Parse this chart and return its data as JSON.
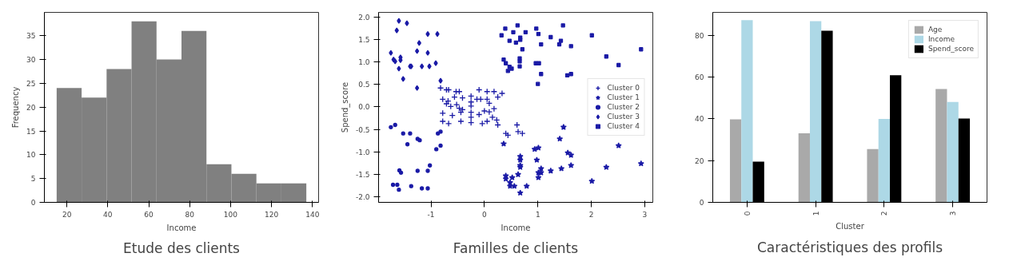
{
  "chart_data": [
    {
      "type": "histogram",
      "title": "Etude des clients",
      "xlabel": "Income",
      "ylabel": "Frequency",
      "bins": [
        15,
        27.2,
        39.4,
        51.6,
        63.8,
        76,
        88.2,
        100.4,
        112.6,
        124.8,
        137
      ],
      "values": [
        24,
        22,
        28,
        38,
        30,
        36,
        8,
        6,
        4,
        4
      ],
      "color": "#808080",
      "xlim": [
        9,
        143
      ],
      "xticks": [
        20,
        40,
        60,
        80,
        100,
        120,
        140
      ],
      "ylim": [
        0,
        39.9
      ],
      "yticks": [
        0,
        5,
        10,
        15,
        20,
        25,
        30,
        35
      ],
      "grid": false
    },
    {
      "type": "scatter",
      "title": "Familles de clients",
      "xlabel": "Income",
      "ylabel": "Spend_score",
      "xlim": [
        -1.98,
        3.15
      ],
      "xticks": [
        -1,
        0,
        1,
        2,
        3
      ],
      "ylim": [
        -2.12,
        2.1
      ],
      "yticks": [
        {
          "value": -2,
          "label": "-2.0"
        },
        -1.5,
        {
          "value": -1,
          "label": "-1.0"
        },
        -0.5,
        {
          "value": 0,
          "label": "0.0"
        },
        0.5,
        {
          "value": 1,
          "label": "1.0"
        },
        1.5,
        {
          "value": 2,
          "label": "2.0"
        }
      ],
      "grid": false,
      "legend": "right",
      "series": [
        {
          "name": "Cluster 0",
          "color": "#1a1aa6",
          "marker": "cross",
          "x": [
            -0.82,
            -0.71,
            -0.67,
            -0.78,
            -0.68,
            -0.71,
            -0.78,
            -0.78,
            -0.67,
            -0.63,
            -0.6,
            -0.56,
            -0.53,
            -0.47,
            -0.52,
            -0.47,
            -0.44,
            -0.41,
            -0.44,
            -0.41,
            -0.25,
            -0.25,
            -0.25,
            -0.25,
            -0.25,
            -0.25,
            -0.14,
            -0.1,
            -0.07,
            -0.1,
            -0.04,
            0.0,
            0.05,
            0.05,
            0.05,
            0.09,
            0.09,
            0.15,
            0.18,
            0.18,
            0.23,
            0.25,
            0.25,
            0.33,
            0.4,
            0.44,
            0.61,
            0.63,
            0.71
          ],
          "values": [
            0.42,
            0.38,
            0.38,
            0.17,
            0.13,
            0.07,
            -0.14,
            -0.32,
            -0.37,
            0.01,
            -0.19,
            0.22,
            0.34,
            0.34,
            0.05,
            -0.03,
            -0.12,
            0.2,
            -0.32,
            -0.06,
            0.24,
            0.11,
            0.02,
            -0.12,
            -0.23,
            -0.35,
            0.17,
            0.38,
            0.17,
            -0.17,
            -0.37,
            -0.09,
            0.34,
            0.17,
            -0.32,
            0.08,
            -0.11,
            -0.23,
            -0.04,
            0.34,
            -0.29,
            0.22,
            -0.4,
            0.3,
            -0.59,
            -0.63,
            -0.4,
            -0.55,
            -0.59
          ]
        },
        {
          "name": "Cluster 1",
          "color": "#1a1aa6",
          "marker": "star",
          "x": [
            0.36,
            0.4,
            0.4,
            0.48,
            0.48,
            0.52,
            0.56,
            0.63,
            0.67,
            0.67,
            0.67,
            0.67,
            0.67,
            0.79,
            0.94,
            1.01,
            0.98,
            1.01,
            1.01,
            1.06,
            1.06,
            1.24,
            1.41,
            1.48,
            1.44,
            1.56,
            1.62,
            1.62,
            2.01,
            2.28,
            2.51,
            2.93
          ],
          "values": [
            -0.82,
            -1.53,
            -1.6,
            -1.68,
            -1.76,
            -1.57,
            -1.76,
            -1.5,
            -1.1,
            -1.18,
            -1.3,
            -1.34,
            -1.91,
            -1.76,
            -0.94,
            -0.91,
            -1.18,
            -1.46,
            -1.57,
            -1.46,
            -1.37,
            -1.42,
            -0.71,
            -0.45,
            -1.37,
            -1.02,
            -1.07,
            -1.3,
            -1.65,
            -1.34,
            -0.86,
            -1.26
          ]
        },
        {
          "name": "Cluster 2",
          "color": "#1a1aa6",
          "marker": "circle",
          "x": [
            -1.75,
            -1.67,
            -1.52,
            -1.39,
            -1.44,
            -1.25,
            -1.21,
            -1.59,
            -1.56,
            -1.71,
            -1.63,
            -1.6,
            -1.37,
            -1.25,
            -1.17,
            -1.06,
            -1.06,
            -1.02,
            -0.9,
            -0.87,
            -0.82,
            -0.82
          ],
          "values": [
            -0.45,
            -0.4,
            -0.59,
            -0.59,
            -0.83,
            -0.71,
            -0.74,
            -1.41,
            -1.46,
            -1.73,
            -1.73,
            -1.84,
            -1.76,
            -1.42,
            -1.81,
            -1.81,
            -1.42,
            -1.3,
            -0.94,
            -0.59,
            -0.55,
            -0.86
          ]
        },
        {
          "name": "Cluster 3",
          "color": "#1a1aa6",
          "x": [
            -1.6,
            -1.45,
            -1.64,
            -1.06,
            -0.88,
            -1.22,
            -1.26,
            -1.06,
            -1.75,
            -1.7,
            -1.67,
            -1.57,
            -1.57,
            -1.6,
            -1.39,
            -1.37,
            -1.17,
            -1.03,
            -0.91,
            -1.52,
            -1.26,
            -0.82
          ],
          "values": [
            1.91,
            1.86,
            1.7,
            1.62,
            1.62,
            1.42,
            1.24,
            1.2,
            1.2,
            1.05,
            1.01,
            1.1,
            1.04,
            0.85,
            0.9,
            0.9,
            0.9,
            0.9,
            0.97,
            0.62,
            0.42,
            0.58
          ]
        },
        {
          "name": "Cluster 4",
          "color": "#1a1aa6",
          "x": [
            0.32,
            0.39,
            0.54,
            0.62,
            0.47,
            0.59,
            0.67,
            0.67,
            0.77,
            0.97,
            1.01,
            1.06,
            1.24,
            1.47,
            1.4,
            1.43,
            1.62,
            2.01,
            2.93,
            0.71,
            0.36,
            0.4,
            0.47,
            0.44,
            0.51,
            0.66,
            0.66,
            0.66,
            0.96,
            1.02,
            1.06,
            1.0,
            1.55,
            1.62,
            2.28,
            2.51
          ],
          "values": [
            1.59,
            1.74,
            1.66,
            1.81,
            1.47,
            1.43,
            1.49,
            1.54,
            1.66,
            1.74,
            1.62,
            1.39,
            1.55,
            1.81,
            1.39,
            1.47,
            1.35,
            1.59,
            1.28,
            1.28,
            1.05,
            0.97,
            0.89,
            0.8,
            0.85,
            1.08,
            1.01,
            0.9,
            0.97,
            0.97,
            0.73,
            0.51,
            0.7,
            0.73,
            1.12,
            0.93
          ]
        }
      ]
    },
    {
      "type": "bar",
      "title": "Caractéristiques des profils",
      "xlabel": "Cluster",
      "categories": [
        "0",
        "1",
        "2",
        "3"
      ],
      "ylim": [
        0,
        90.9
      ],
      "yticks": [
        0,
        20,
        40,
        60,
        80
      ],
      "grid": false,
      "legend": "top right",
      "series": [
        {
          "name": "Age",
          "color": "#a9a9a9",
          "values": [
            39.7,
            33.0,
            25.5,
            54.2
          ]
        },
        {
          "name": "Income",
          "color": "#add8e6",
          "values": [
            87.2,
            86.7,
            39.9,
            48.0
          ]
        },
        {
          "name": "Spend_score",
          "color": "#000000",
          "values": [
            19.5,
            82.1,
            60.8,
            40.1
          ]
        }
      ]
    }
  ]
}
